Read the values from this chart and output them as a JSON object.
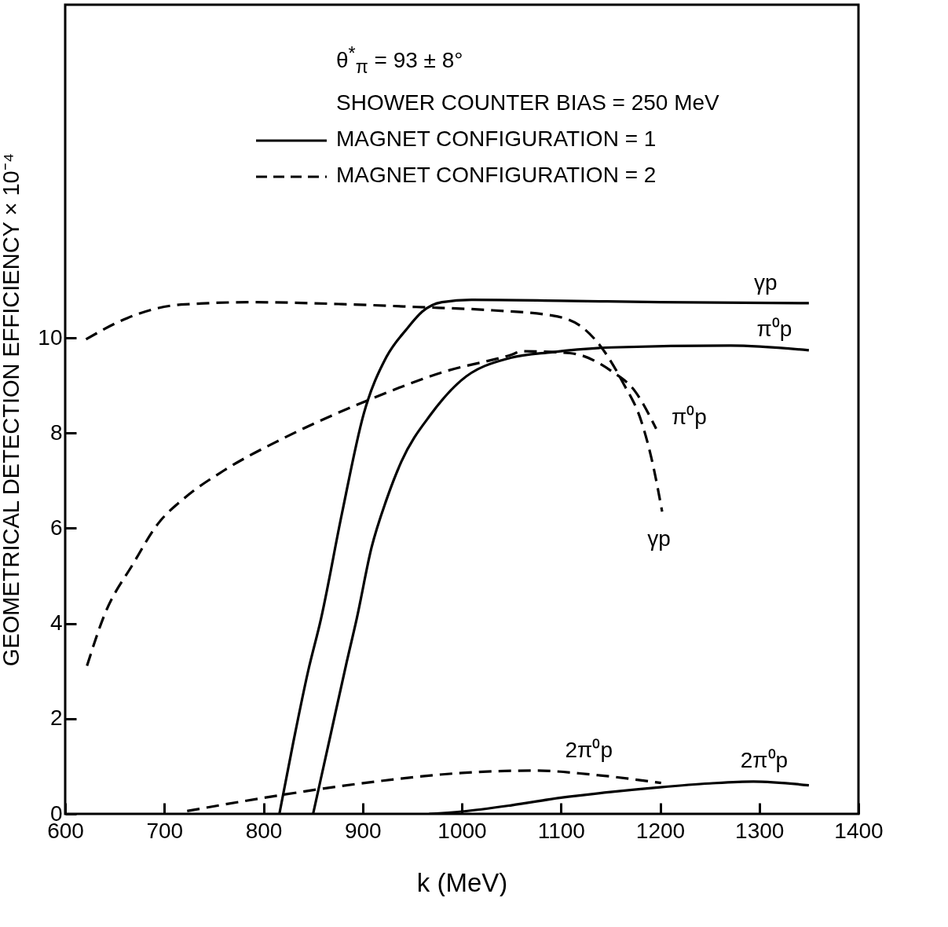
{
  "chart_data": {
    "type": "line",
    "xlabel": "k (MeV)",
    "ylabel": "GEOMETRICAL DETECTION EFFICIENCY × 10⁻⁴",
    "xlim": [
      600,
      1400
    ],
    "xticks": [
      600,
      700,
      800,
      900,
      1000,
      1100,
      1200,
      1300,
      1400
    ],
    "ylim": [
      0,
      17
    ],
    "yticks": [
      0,
      2,
      4,
      6,
      8,
      10
    ],
    "grid": false,
    "series": [
      {
        "name": "γp",
        "color": "#000000",
        "line_style": "solid",
        "x": [
          816,
          830,
          845,
          858,
          879,
          901,
          924,
          945,
          960,
          980,
          1010,
          1100,
          1200,
          1350
        ],
        "values": [
          0,
          1.5,
          3,
          4.1,
          6.3,
          8.4,
          9.6,
          10.2,
          10.55,
          10.75,
          10.8,
          10.78,
          10.75,
          10.73
        ]
      },
      {
        "name": "π⁰p",
        "color": "#000000",
        "line_style": "solid",
        "x": [
          850,
          867,
          884,
          894,
          909,
          924,
          939,
          969,
          999,
          1049,
          1091,
          1151,
          1271,
          1350
        ],
        "values": [
          0,
          1.6,
          3.2,
          4.1,
          5.6,
          6.6,
          7.4,
          8.4,
          9.1,
          9.58,
          9.7,
          9.8,
          9.84,
          9.74
        ]
      },
      {
        "name": "2π⁰p",
        "color": "#000000",
        "line_style": "solid",
        "x": [
          967,
          1000,
          1050,
          1100,
          1150,
          1200,
          1250,
          1294,
          1350
        ],
        "values": [
          0,
          0.05,
          0.18,
          0.34,
          0.46,
          0.56,
          0.64,
          0.68,
          0.6
        ]
      },
      {
        "name": "γp",
        "color": "#000000",
        "line_style": "dashed",
        "x": [
          621,
          663,
          717,
          789,
          879,
          954,
          1031,
          1091,
          1121,
          1139,
          1163,
          1181,
          1193,
          1202
        ],
        "values": [
          9.97,
          10.42,
          10.7,
          10.75,
          10.71,
          10.65,
          10.58,
          10.47,
          10.23,
          9.85,
          9.04,
          8.25,
          7.31,
          6.35
        ]
      },
      {
        "name": "π⁰p",
        "color": "#000000",
        "line_style": "dashed",
        "x": [
          622,
          639,
          669,
          693,
          720,
          759,
          819,
          903,
          984,
          1049,
          1061,
          1109,
          1151,
          1175,
          1196
        ],
        "values": [
          3.11,
          4.15,
          5.27,
          6.08,
          6.63,
          7.2,
          7.88,
          8.67,
          9.3,
          9.64,
          9.72,
          9.68,
          9.3,
          8.87,
          8.09
        ]
      },
      {
        "name": "2π⁰p",
        "color": "#000000",
        "line_style": "dashed",
        "x": [
          723,
          801,
          902,
          1000,
          1074,
          1129,
          1201
        ],
        "values": [
          0.06,
          0.34,
          0.65,
          0.86,
          0.91,
          0.83,
          0.65
        ]
      }
    ],
    "annotations": [
      "θ$^{*}$$_{π}$ = 93 ± 8°",
      "SHOWER COUNTER BIAS = 250 MeV",
      "MAGNET CONFIGURATION = 1",
      "MAGNET CONFIGURATION = 2"
    ]
  }
}
